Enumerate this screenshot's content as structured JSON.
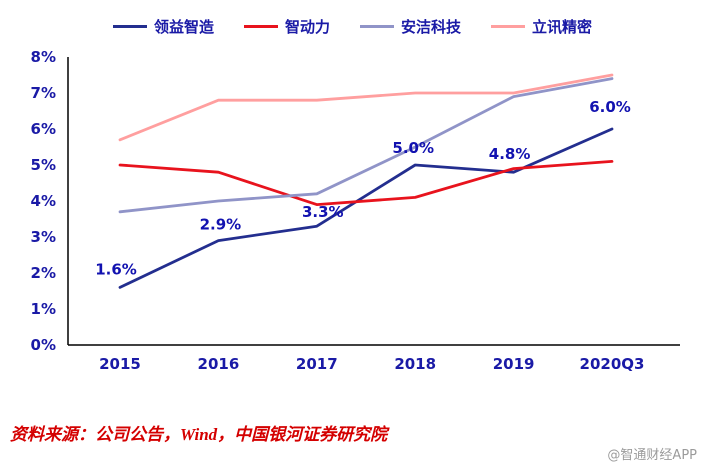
{
  "chart_data": {
    "type": "line",
    "title": "",
    "categories": [
      "2015",
      "2016",
      "2017",
      "2018",
      "2019",
      "2020Q3"
    ],
    "series": [
      {
        "name": "领益智造",
        "color": "#232e8f",
        "values": [
          1.6,
          2.9,
          3.3,
          5.0,
          4.8,
          6.0
        ]
      },
      {
        "name": "智动力",
        "color": "#e8131d",
        "values": [
          5.0,
          4.8,
          3.9,
          4.1,
          4.9,
          5.1
        ]
      },
      {
        "name": "安洁科技",
        "color": "#9094c8",
        "values": [
          3.7,
          4.0,
          4.2,
          5.5,
          6.9,
          7.4
        ]
      },
      {
        "name": "立讯精密",
        "color": "#ff9f9f",
        "values": [
          5.7,
          6.8,
          6.8,
          7.0,
          7.0,
          7.5
        ]
      }
    ],
    "point_labels": [
      "1.6%",
      "2.9%",
      "3.3%",
      "5.0%",
      "4.8%",
      "6.0%"
    ],
    "point_labels_series": "领益智造",
    "ylim": [
      0,
      8
    ],
    "y_tick_step": 1,
    "y_tick_suffix": "%",
    "y_tick_labels": [
      "0%",
      "1%",
      "2%",
      "3%",
      "4%",
      "5%",
      "6%",
      "7%",
      "8%"
    ],
    "grid": false,
    "legend_position": "top",
    "axis_color": "#000000",
    "tick_label_color": "#1a1aa6",
    "point_label_color": "#1212b0"
  },
  "source_note": "资料来源：公司公告，Wind，中国银河证券研究院",
  "watermark": "@智通财经APP"
}
